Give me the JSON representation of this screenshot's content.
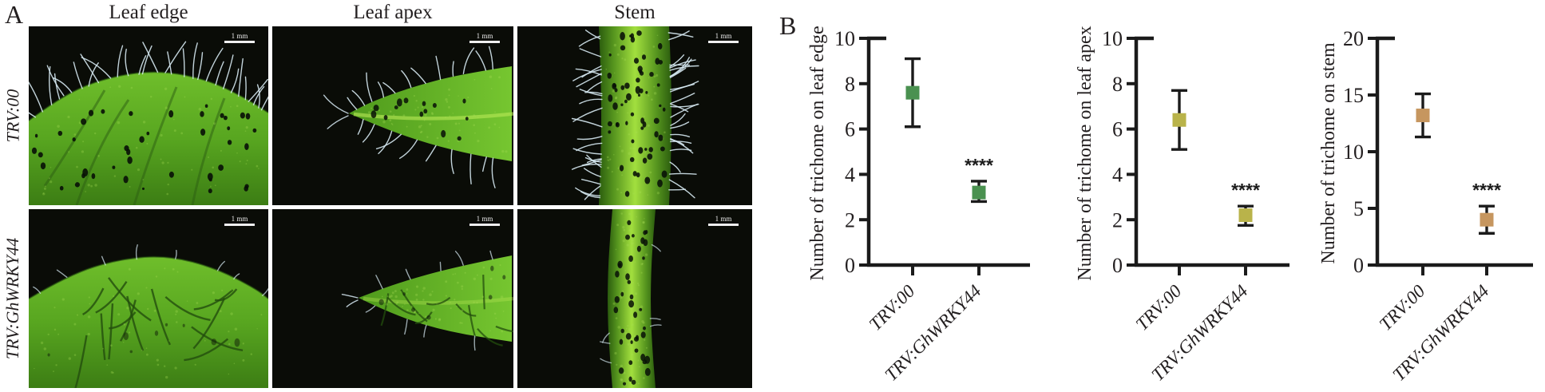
{
  "figure": {
    "panel_a_label": "A",
    "panel_b_label": "B",
    "columns": [
      "Leaf edge",
      "Leaf apex",
      "Stem"
    ],
    "rows": [
      "TRV:00",
      "TRV:GhWRKY44"
    ],
    "scale_bar_label": "1 mm"
  },
  "colors": {
    "leaf_edge_marker": "#4a9150",
    "leaf_apex_marker": "#b9b34a",
    "stem_marker": "#c6965f",
    "axis": "#1b1b1b"
  },
  "chart_data": [
    {
      "type": "scatter",
      "title": "",
      "xlabel": "",
      "ylabel": "Number of trichome on leaf edge",
      "categories": [
        "TRV:00",
        "TRV:GhWRKY44"
      ],
      "ylim": [
        0,
        10
      ],
      "yticks": [
        0,
        2,
        4,
        6,
        8,
        10
      ],
      "marker_color": "#4a9150",
      "points": [
        {
          "category": "TRV:00",
          "mean": 7.6,
          "err_low": 6.1,
          "err_high": 9.1,
          "significance": ""
        },
        {
          "category": "TRV:GhWRKY44",
          "mean": 3.2,
          "err_low": 2.8,
          "err_high": 3.7,
          "significance": "****"
        }
      ]
    },
    {
      "type": "scatter",
      "title": "",
      "xlabel": "",
      "ylabel": "Number of trichome on leaf apex",
      "categories": [
        "TRV:00",
        "TRV:GhWRKY44"
      ],
      "ylim": [
        0,
        10
      ],
      "yticks": [
        0,
        2,
        4,
        6,
        8,
        10
      ],
      "marker_color": "#b9b34a",
      "points": [
        {
          "category": "TRV:00",
          "mean": 6.4,
          "err_low": 5.1,
          "err_high": 7.7,
          "significance": ""
        },
        {
          "category": "TRV:GhWRKY44",
          "mean": 2.2,
          "err_low": 1.75,
          "err_high": 2.6,
          "significance": "****"
        }
      ]
    },
    {
      "type": "scatter",
      "title": "",
      "xlabel": "",
      "ylabel": "Number of trichome on stem",
      "categories": [
        "TRV:00",
        "TRV:GhWRKY44"
      ],
      "ylim": [
        0,
        20
      ],
      "yticks": [
        0,
        5,
        10,
        15,
        20
      ],
      "marker_color": "#c6965f",
      "points": [
        {
          "category": "TRV:00",
          "mean": 13.2,
          "err_low": 11.3,
          "err_high": 15.1,
          "significance": ""
        },
        {
          "category": "TRV:GhWRKY44",
          "mean": 4.0,
          "err_low": 2.8,
          "err_high": 5.2,
          "significance": "****"
        }
      ]
    }
  ]
}
